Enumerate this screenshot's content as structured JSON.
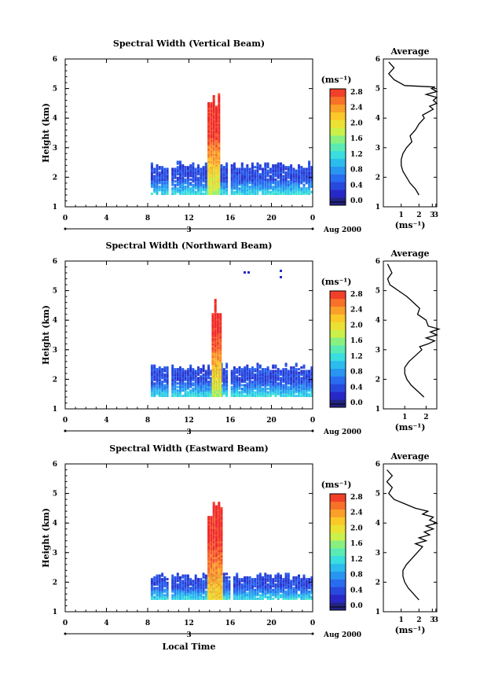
{
  "chart_data": [
    {
      "type": "heatmap",
      "title": "Spectral Width (Vertical Beam)",
      "ylabel": "Height (km)",
      "xlabel": "",
      "date_label": "3",
      "month_label": "Aug 2000",
      "xlim": [
        0,
        24
      ],
      "ylim": [
        1,
        6
      ],
      "xticks": [
        "0",
        "4",
        "8",
        "12",
        "16",
        "20",
        "0"
      ],
      "yticks": [
        "1",
        "2",
        "3",
        "4",
        "5",
        "6"
      ],
      "colorbar": {
        "unit": "(ms⁻¹)",
        "ticks": [
          "0.0",
          "0.4",
          "0.8",
          "1.2",
          "1.6",
          "2.0",
          "2.4",
          "2.8"
        ],
        "range": [
          0,
          3.0
        ]
      },
      "data_regions": [
        {
          "t_start": 8.3,
          "t_end": 24,
          "h_start": 1.4,
          "h_end": 2.5,
          "value_bottom": 1.3,
          "value_top": 0.5
        },
        {
          "t_start": 13.8,
          "t_end": 14.9,
          "h_start": 1.4,
          "h_end": 4.8,
          "value_bottom": 1.8,
          "value_top": 3.0
        }
      ],
      "gaps": [
        [
          9.9,
          10.3
        ],
        [
          15.6,
          15.9
        ]
      ],
      "profile": {
        "title": "Average",
        "xlabel": "(ms⁻¹)",
        "xlim": [
          0,
          3
        ],
        "xticks": [
          "1",
          "2",
          "3",
          "3"
        ],
        "ylim": [
          1,
          6
        ],
        "yticks": [
          "1",
          "2",
          "3",
          "4",
          "5",
          "6"
        ],
        "x": [
          2.0,
          1.8,
          1.5,
          1.3,
          1.1,
          1.0,
          1.0,
          1.1,
          1.3,
          1.6,
          1.5,
          1.8,
          2.0,
          2.3,
          2.2,
          2.5,
          2.8,
          2.6,
          3.0,
          2.8,
          3.0,
          2.4,
          3.0,
          2.7,
          2.9,
          1.2,
          0.6,
          0.3,
          0.6,
          0.3
        ],
        "y": [
          1.4,
          1.6,
          1.8,
          2.0,
          2.2,
          2.4,
          2.6,
          2.8,
          3.0,
          3.2,
          3.4,
          3.6,
          3.8,
          4.0,
          4.1,
          4.2,
          4.3,
          4.4,
          4.5,
          4.6,
          4.7,
          4.8,
          4.9,
          5.0,
          5.05,
          5.1,
          5.3,
          5.5,
          5.7,
          5.9
        ]
      }
    },
    {
      "type": "heatmap",
      "title": "Spectral Width (Northward Beam)",
      "ylabel": "Height (km)",
      "xlabel": "",
      "date_label": "3",
      "month_label": "Aug 2000",
      "xlim": [
        0,
        24
      ],
      "ylim": [
        1,
        6
      ],
      "xticks": [
        "0",
        "4",
        "8",
        "12",
        "16",
        "20",
        "0"
      ],
      "yticks": [
        "1",
        "2",
        "3",
        "4",
        "5",
        "6"
      ],
      "colorbar": {
        "unit": "(ms⁻¹)",
        "ticks": [
          "0.0",
          "0.4",
          "0.8",
          "1.2",
          "1.6",
          "2.0",
          "2.4",
          "2.8"
        ],
        "range": [
          0,
          3.0
        ]
      },
      "data_regions": [
        {
          "t_start": 8.3,
          "t_end": 24,
          "h_start": 1.4,
          "h_end": 2.5,
          "value_bottom": 1.3,
          "value_top": 0.5
        },
        {
          "t_start": 14.2,
          "t_end": 15.0,
          "h_start": 1.4,
          "h_end": 4.7,
          "value_bottom": 1.8,
          "value_top": 3.0
        }
      ],
      "gaps": [
        [
          9.9,
          10.3
        ],
        [
          15.8,
          16.0
        ]
      ],
      "profile": {
        "title": "Average",
        "xlabel": "(ms⁻¹)",
        "xlim": [
          0,
          2.5
        ],
        "xticks": [
          "1",
          "2"
        ],
        "ylim": [
          1,
          6
        ],
        "yticks": [
          "1",
          "2",
          "3",
          "4",
          "5",
          "6"
        ],
        "x": [
          1.9,
          1.6,
          1.3,
          1.1,
          1.0,
          1.0,
          1.2,
          1.5,
          1.8,
          1.7,
          2.1,
          2.4,
          2.0,
          2.5,
          2.2,
          2.6,
          2.1,
          2.0,
          1.6,
          1.7,
          1.4,
          1.1,
          0.9,
          0.7,
          0.5,
          0.3,
          0.2,
          0.4,
          0.2
        ],
        "y": [
          1.4,
          1.6,
          1.8,
          2.0,
          2.2,
          2.4,
          2.6,
          2.8,
          3.0,
          3.1,
          3.2,
          3.3,
          3.4,
          3.5,
          3.6,
          3.7,
          3.8,
          4.0,
          4.2,
          4.4,
          4.6,
          4.8,
          4.9,
          5.0,
          5.1,
          5.2,
          5.4,
          5.6,
          5.9
        ]
      }
    },
    {
      "type": "heatmap",
      "title": "Spectral Width (Eastward Beam)",
      "ylabel": "Height (km)",
      "xlabel": "Local Time",
      "date_label": "3",
      "month_label": "Aug 2000",
      "xlim": [
        0,
        24
      ],
      "ylim": [
        1,
        6
      ],
      "xticks": [
        "0",
        "4",
        "8",
        "12",
        "16",
        "20",
        "0"
      ],
      "yticks": [
        "1",
        "2",
        "3",
        "4",
        "5",
        "6"
      ],
      "colorbar": {
        "unit": "(ms⁻¹)",
        "ticks": [
          "0.0",
          "0.4",
          "0.8",
          "1.2",
          "1.6",
          "2.0",
          "2.4",
          "2.8"
        ],
        "range": [
          0,
          3.0
        ]
      },
      "data_regions": [
        {
          "t_start": 8.3,
          "t_end": 24,
          "h_start": 1.4,
          "h_end": 2.3,
          "value_bottom": 1.3,
          "value_top": 0.5
        },
        {
          "t_start": 13.8,
          "t_end": 15.2,
          "h_start": 1.4,
          "h_end": 4.7,
          "value_bottom": 2.2,
          "value_top": 3.0
        }
      ],
      "gaps": [
        [
          9.9,
          10.3
        ],
        [
          15.9,
          16.1
        ]
      ],
      "profile": {
        "title": "Average",
        "xlabel": "(ms⁻¹)",
        "xlim": [
          0,
          3
        ],
        "xticks": [
          "1",
          "2",
          "3",
          "3"
        ],
        "ylim": [
          1,
          6
        ],
        "yticks": [
          "1",
          "2",
          "3",
          "4",
          "5",
          "6"
        ],
        "x": [
          2.0,
          1.7,
          1.4,
          1.2,
          1.1,
          1.1,
          1.3,
          1.6,
          1.9,
          2.2,
          1.8,
          2.4,
          2.0,
          2.6,
          2.3,
          2.8,
          2.4,
          3.0,
          2.6,
          2.8,
          2.2,
          2.5,
          1.8,
          1.4,
          1.0,
          0.6,
          0.3,
          0.5,
          0.2,
          0.5,
          0.2
        ],
        "y": [
          1.4,
          1.6,
          1.8,
          2.0,
          2.2,
          2.4,
          2.6,
          2.8,
          3.0,
          3.2,
          3.3,
          3.4,
          3.5,
          3.6,
          3.7,
          3.8,
          3.9,
          4.0,
          4.1,
          4.2,
          4.3,
          4.4,
          4.5,
          4.6,
          4.7,
          4.8,
          5.0,
          5.2,
          5.4,
          5.6,
          5.8
        ]
      }
    }
  ]
}
